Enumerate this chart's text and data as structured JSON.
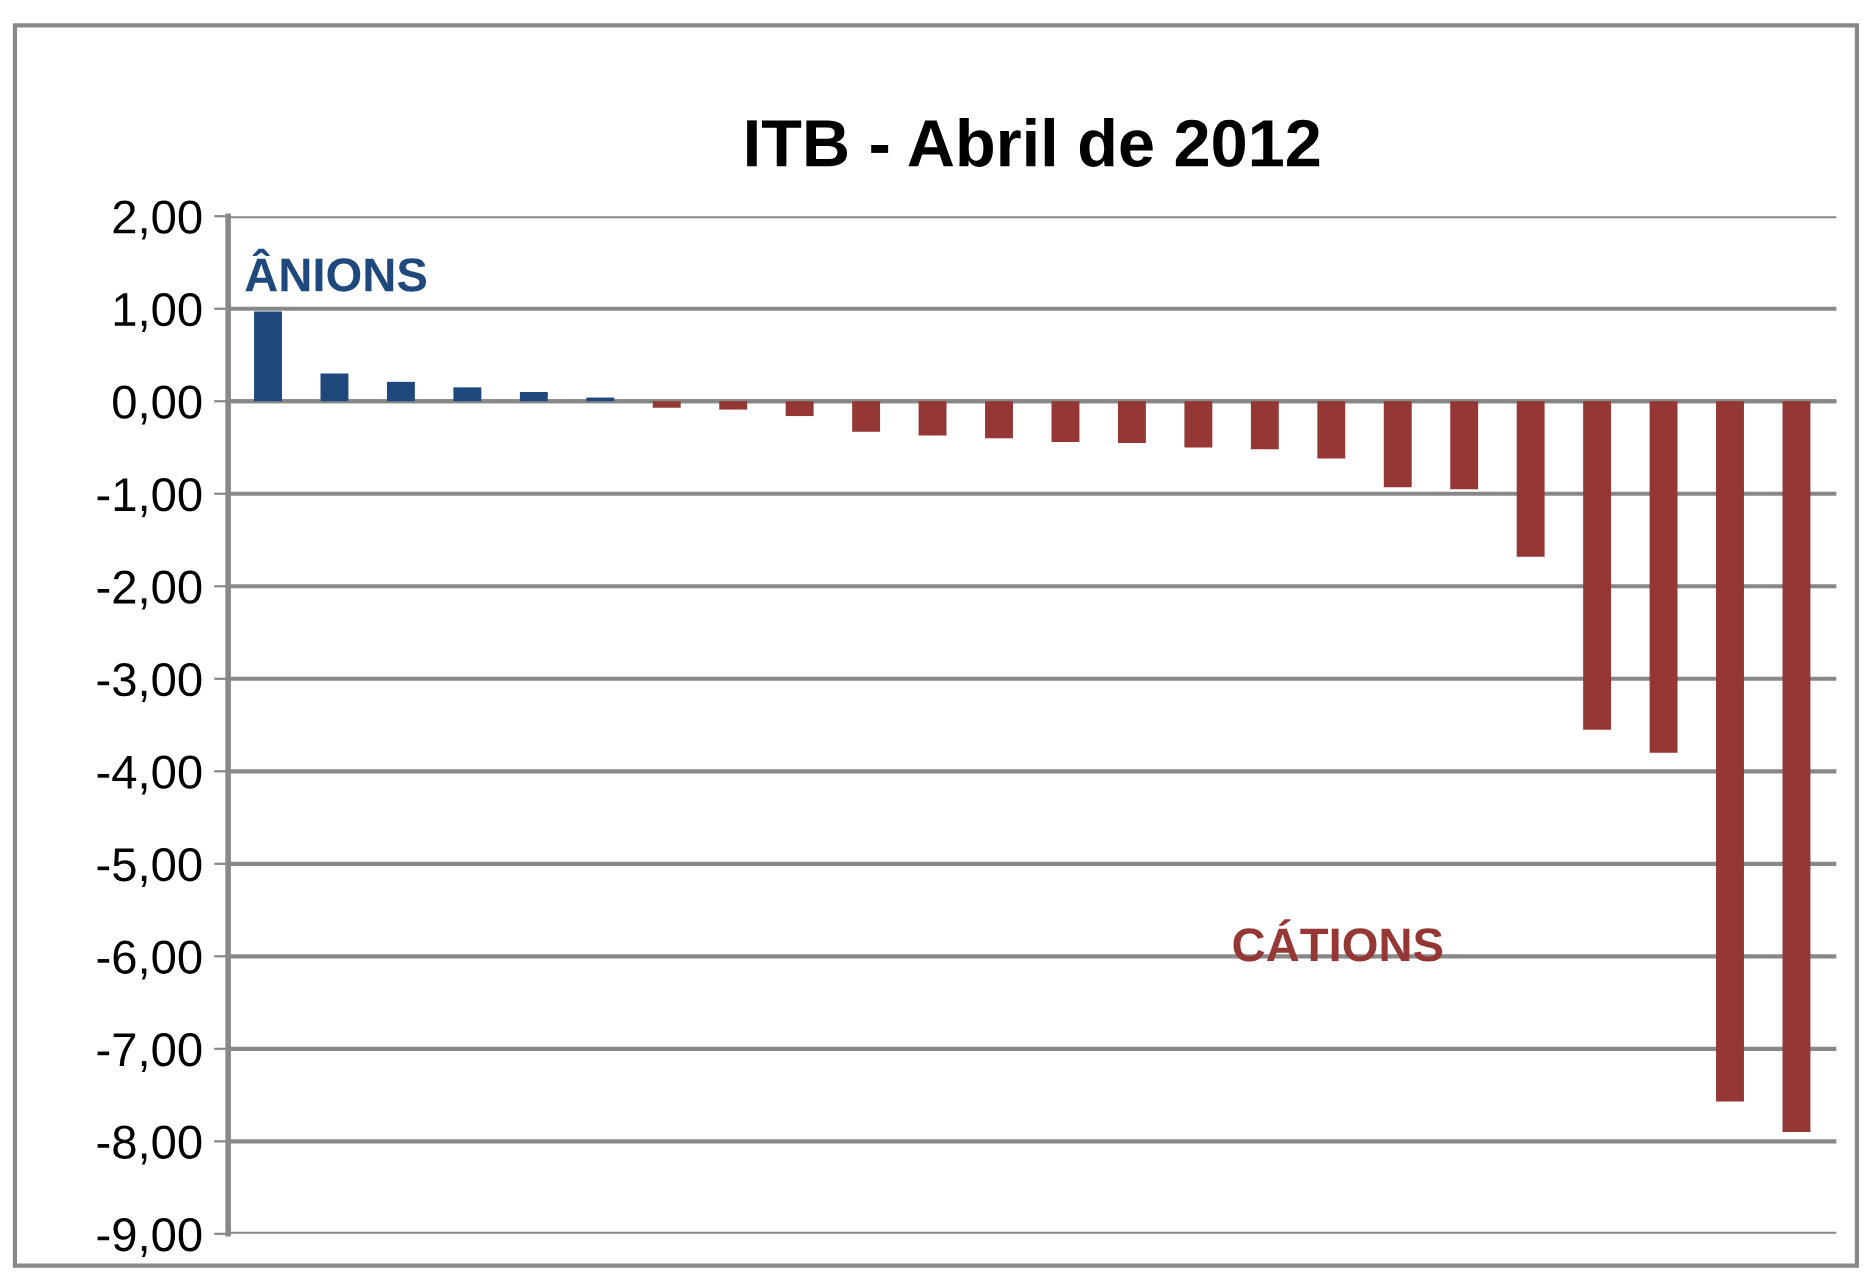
{
  "chart_data": {
    "type": "bar",
    "title": "ITB - Abril de 2012",
    "categories": [
      null,
      null,
      null,
      null,
      null,
      null,
      null,
      null,
      null,
      null,
      null,
      null,
      null,
      null,
      null,
      null,
      null,
      null,
      null,
      null,
      null,
      null,
      null,
      null
    ],
    "values": [
      0.97,
      0.3,
      0.21,
      0.15,
      0.1,
      0.04,
      -0.07,
      -0.09,
      -0.16,
      -0.33,
      -0.37,
      -0.4,
      -0.44,
      -0.45,
      -0.5,
      -0.52,
      -0.62,
      -0.93,
      -0.95,
      -1.68,
      -3.55,
      -3.8,
      -7.57,
      -7.9
    ],
    "colors": [
      "#1f497d",
      "#1f497d",
      "#1f497d",
      "#1f497d",
      "#1f497d",
      "#1f497d",
      "#953735",
      "#953735",
      "#953735",
      "#953735",
      "#953735",
      "#953735",
      "#953735",
      "#953735",
      "#953735",
      "#953735",
      "#953735",
      "#953735",
      "#953735",
      "#953735",
      "#953735",
      "#953735",
      "#953735",
      "#953735"
    ],
    "annotations": [
      "ÂNIONS",
      "CÁTIONS"
    ],
    "ylim": [
      -9,
      2
    ],
    "yticks": [
      {
        "value": 2,
        "label": "2,00"
      },
      {
        "value": 1,
        "label": "1,00"
      },
      {
        "value": 0,
        "label": "0,00"
      },
      {
        "value": -1,
        "label": "-1,00"
      },
      {
        "value": -2,
        "label": "-2,00"
      },
      {
        "value": -3,
        "label": "-3,00"
      },
      {
        "value": -4,
        "label": "-4,00"
      },
      {
        "value": -5,
        "label": "-5,00"
      },
      {
        "value": -6,
        "label": "-6,00"
      },
      {
        "value": -7,
        "label": "-7,00"
      },
      {
        "value": -8,
        "label": "-8,00"
      },
      {
        "value": -9,
        "label": "-9,00"
      }
    ],
    "grid": "y",
    "legend": false
  }
}
